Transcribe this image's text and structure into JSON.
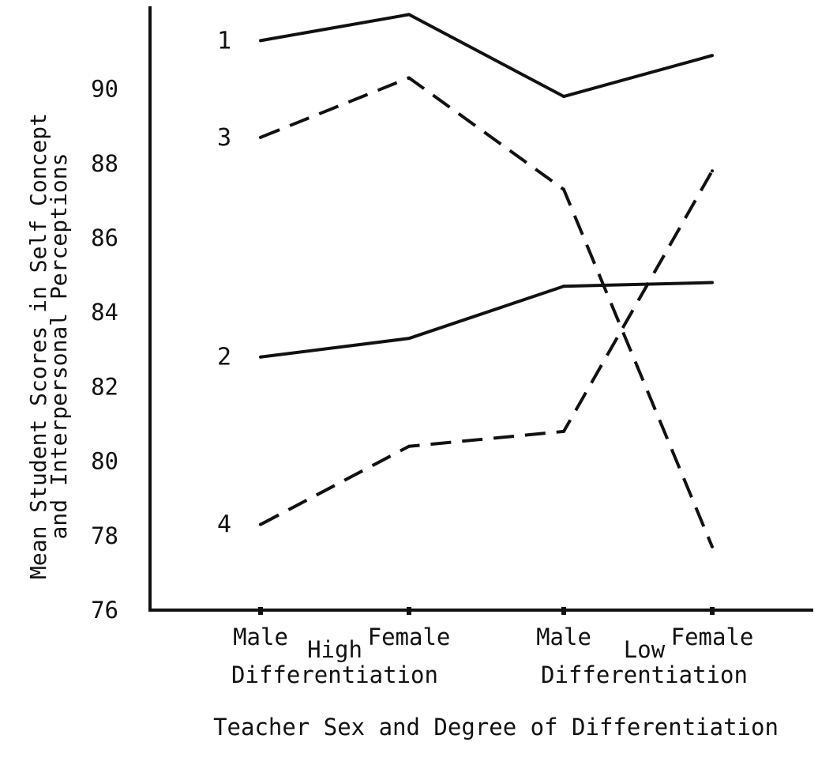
{
  "chart_data": {
    "type": "line",
    "ylabel_line1": "Mean Student Scores in Self Concept",
    "ylabel_line2": "and Interpersonal Perceptions",
    "xlabel": "Teacher Sex and Degree of Differentiation",
    "categories": [
      "Male",
      "Female",
      "Male",
      "Female"
    ],
    "groups": [
      {
        "label_line1": "High",
        "label_line2": "Differentiation"
      },
      {
        "label_line1": "Low",
        "label_line2": "Differentiation"
      }
    ],
    "ylim": [
      76,
      92.5
    ],
    "yticks": [
      76,
      78,
      80,
      82,
      84,
      86,
      88,
      90
    ],
    "series": [
      {
        "label": "1",
        "style": "solid",
        "values": [
          91.3,
          92.0,
          89.8,
          90.9
        ]
      },
      {
        "label": "2",
        "style": "solid",
        "values": [
          82.8,
          83.3,
          84.7,
          84.8
        ]
      },
      {
        "label": "3",
        "style": "dashed",
        "values": [
          88.7,
          90.3,
          87.3,
          77.7
        ]
      },
      {
        "label": "4",
        "style": "dashed",
        "values": [
          78.3,
          80.4,
          80.8,
          87.8
        ]
      }
    ]
  }
}
